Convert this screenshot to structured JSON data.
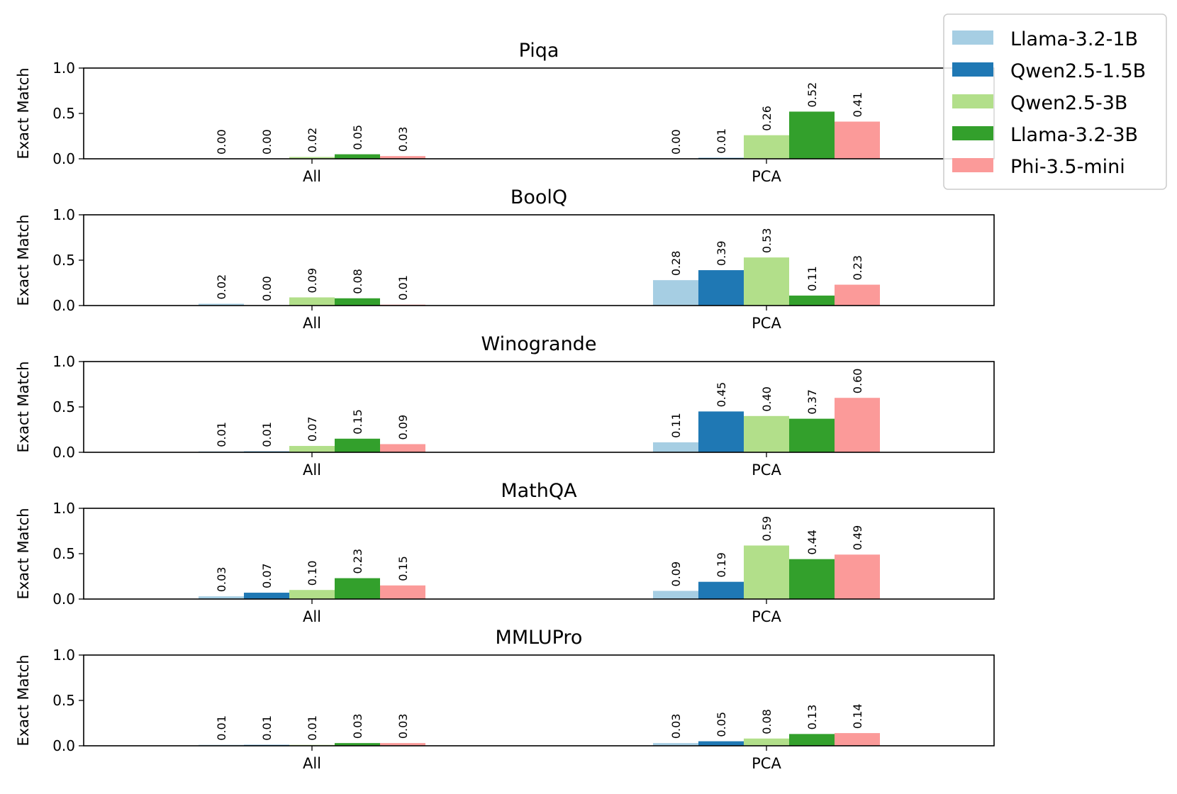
{
  "chart_data": {
    "type": "bar",
    "ylabel": "Exact Match",
    "ylim": [
      0,
      1.0
    ],
    "yticks": [
      "0.0",
      "0.5",
      "1.0"
    ],
    "categories": [
      "All",
      "PCA"
    ],
    "legend": {
      "placement": "top-right",
      "series": [
        {
          "name": "Llama-3.2-1B",
          "color": "#a6cee3"
        },
        {
          "name": "Qwen2.5-1.5B",
          "color": "#1f78b4"
        },
        {
          "name": "Qwen2.5-3B",
          "color": "#b2df8a"
        },
        {
          "name": "Llama-3.2-3B",
          "color": "#33a02c"
        },
        {
          "name": "Phi-3.5-mini",
          "color": "#fb9a99"
        }
      ]
    },
    "panels": [
      {
        "title": "Piqa",
        "series": [
          {
            "name": "Llama-3.2-1B",
            "values": [
              0.0,
              0.0
            ],
            "labels": [
              "0.00",
              "0.00"
            ]
          },
          {
            "name": "Qwen2.5-1.5B",
            "values": [
              0.0,
              0.01
            ],
            "labels": [
              "0.00",
              "0.01"
            ]
          },
          {
            "name": "Qwen2.5-3B",
            "values": [
              0.02,
              0.26
            ],
            "labels": [
              "0.02",
              "0.26"
            ]
          },
          {
            "name": "Llama-3.2-3B",
            "values": [
              0.05,
              0.52
            ],
            "labels": [
              "0.05",
              "0.52"
            ]
          },
          {
            "name": "Phi-3.5-mini",
            "values": [
              0.03,
              0.41
            ],
            "labels": [
              "0.03",
              "0.41"
            ]
          }
        ]
      },
      {
        "title": "BoolQ",
        "series": [
          {
            "name": "Llama-3.2-1B",
            "values": [
              0.02,
              0.28
            ],
            "labels": [
              "0.02",
              "0.28"
            ]
          },
          {
            "name": "Qwen2.5-1.5B",
            "values": [
              0.0,
              0.39
            ],
            "labels": [
              "0.00",
              "0.39"
            ]
          },
          {
            "name": "Qwen2.5-3B",
            "values": [
              0.09,
              0.53
            ],
            "labels": [
              "0.09",
              "0.53"
            ]
          },
          {
            "name": "Llama-3.2-3B",
            "values": [
              0.08,
              0.11
            ],
            "labels": [
              "0.08",
              "0.11"
            ]
          },
          {
            "name": "Phi-3.5-mini",
            "values": [
              0.01,
              0.23
            ],
            "labels": [
              "0.01",
              "0.23"
            ]
          }
        ]
      },
      {
        "title": "Winogrande",
        "series": [
          {
            "name": "Llama-3.2-1B",
            "values": [
              0.01,
              0.11
            ],
            "labels": [
              "0.01",
              "0.11"
            ]
          },
          {
            "name": "Qwen2.5-1.5B",
            "values": [
              0.01,
              0.45
            ],
            "labels": [
              "0.01",
              "0.45"
            ]
          },
          {
            "name": "Qwen2.5-3B",
            "values": [
              0.07,
              0.4
            ],
            "labels": [
              "0.07",
              "0.40"
            ]
          },
          {
            "name": "Llama-3.2-3B",
            "values": [
              0.15,
              0.37
            ],
            "labels": [
              "0.15",
              "0.37"
            ]
          },
          {
            "name": "Phi-3.5-mini",
            "values": [
              0.09,
              0.6
            ],
            "labels": [
              "0.09",
              "0.60"
            ]
          }
        ]
      },
      {
        "title": "MathQA",
        "series": [
          {
            "name": "Llama-3.2-1B",
            "values": [
              0.03,
              0.09
            ],
            "labels": [
              "0.03",
              "0.09"
            ]
          },
          {
            "name": "Qwen2.5-1.5B",
            "values": [
              0.07,
              0.19
            ],
            "labels": [
              "0.07",
              "0.19"
            ]
          },
          {
            "name": "Qwen2.5-3B",
            "values": [
              0.1,
              0.59
            ],
            "labels": [
              "0.10",
              "0.59"
            ]
          },
          {
            "name": "Llama-3.2-3B",
            "values": [
              0.23,
              0.44
            ],
            "labels": [
              "0.23",
              "0.44"
            ]
          },
          {
            "name": "Phi-3.5-mini",
            "values": [
              0.15,
              0.49
            ],
            "labels": [
              "0.15",
              "0.49"
            ]
          }
        ]
      },
      {
        "title": "MMLUPro",
        "series": [
          {
            "name": "Llama-3.2-1B",
            "values": [
              0.01,
              0.03
            ],
            "labels": [
              "0.01",
              "0.03"
            ]
          },
          {
            "name": "Qwen2.5-1.5B",
            "values": [
              0.01,
              0.05
            ],
            "labels": [
              "0.01",
              "0.05"
            ]
          },
          {
            "name": "Qwen2.5-3B",
            "values": [
              0.01,
              0.08
            ],
            "labels": [
              "0.01",
              "0.08"
            ]
          },
          {
            "name": "Llama-3.2-3B",
            "values": [
              0.03,
              0.13
            ],
            "labels": [
              "0.03",
              "0.13"
            ]
          },
          {
            "name": "Phi-3.5-mini",
            "values": [
              0.03,
              0.14
            ],
            "labels": [
              "0.03",
              "0.14"
            ]
          }
        ]
      }
    ]
  }
}
